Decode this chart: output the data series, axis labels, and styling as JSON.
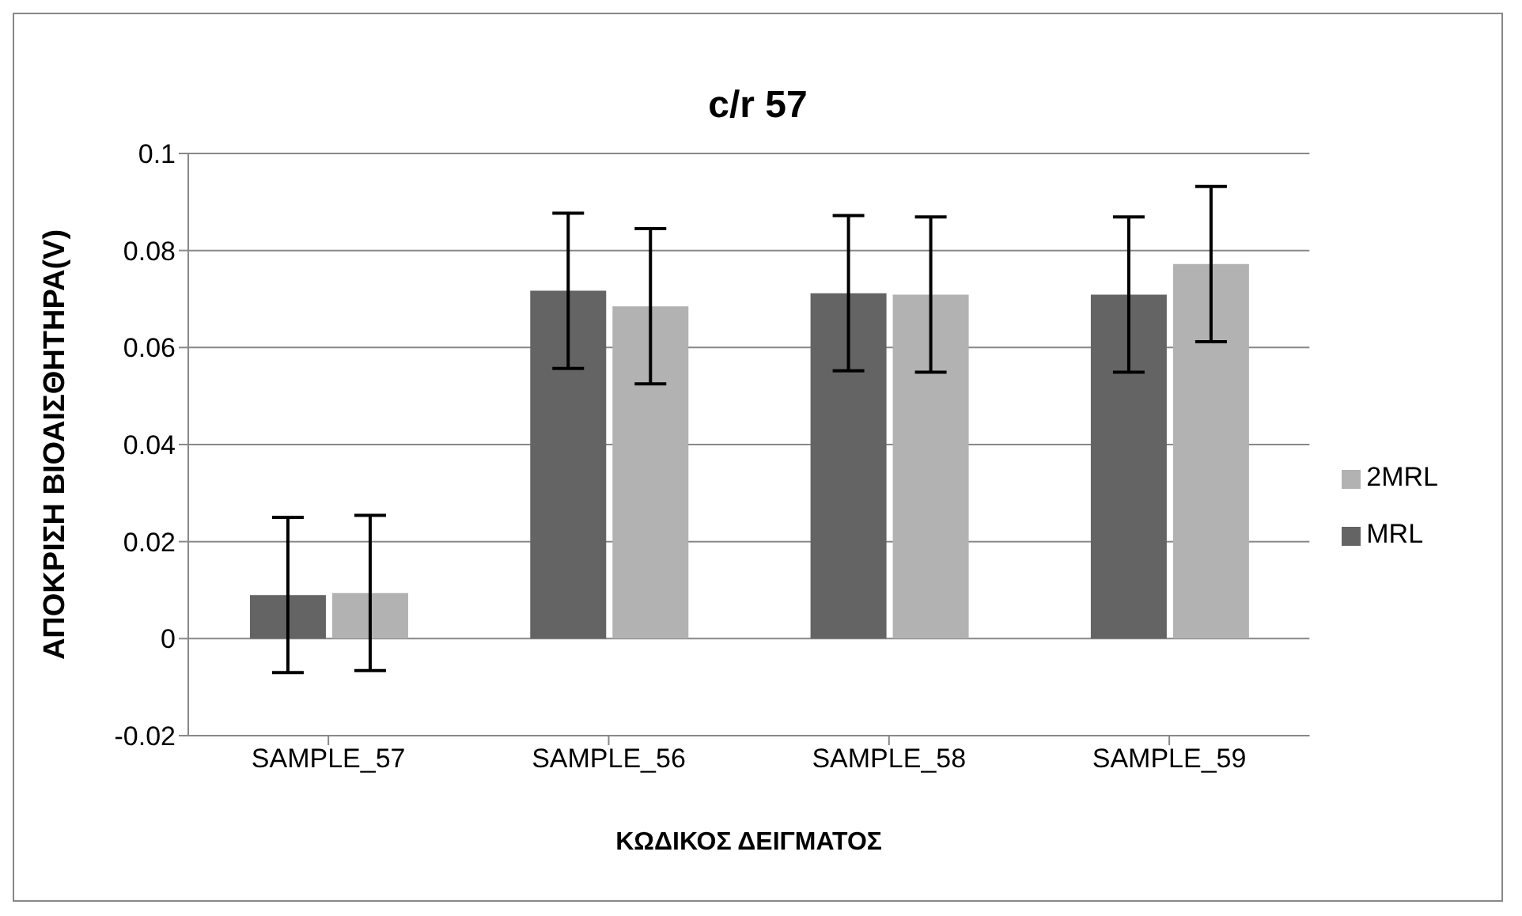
{
  "chart_data": {
    "type": "bar",
    "title": "c/r 57",
    "xlabel": "ΚΩΔΙΚΟΣ ΔΕΙΓΜΑΤΟΣ",
    "ylabel": "ΑΠΟΚΡΙΣΗ ΒΙΟΑΙΣΘΗΤΗΡΑ(V)",
    "categories": [
      "SAMPLE_57",
      "SAMPLE_56",
      "SAMPLE_58",
      "SAMPLE_59"
    ],
    "series": [
      {
        "name": "MRL",
        "color": "#646464",
        "values": [
          0.009,
          0.0717,
          0.0712,
          0.0709
        ],
        "errors": [
          0.016,
          0.016,
          0.016,
          0.016
        ]
      },
      {
        "name": "2MRL",
        "color": "#b2b2b2",
        "values": [
          0.0094,
          0.0685,
          0.0709,
          0.0772
        ],
        "errors": [
          0.016,
          0.016,
          0.016,
          0.016
        ]
      }
    ],
    "ylim": [
      -0.02,
      0.1
    ],
    "yticks": [
      -0.02,
      0,
      0.02,
      0.04,
      0.06,
      0.08,
      0.1
    ],
    "grid": "y",
    "legend": "right"
  }
}
